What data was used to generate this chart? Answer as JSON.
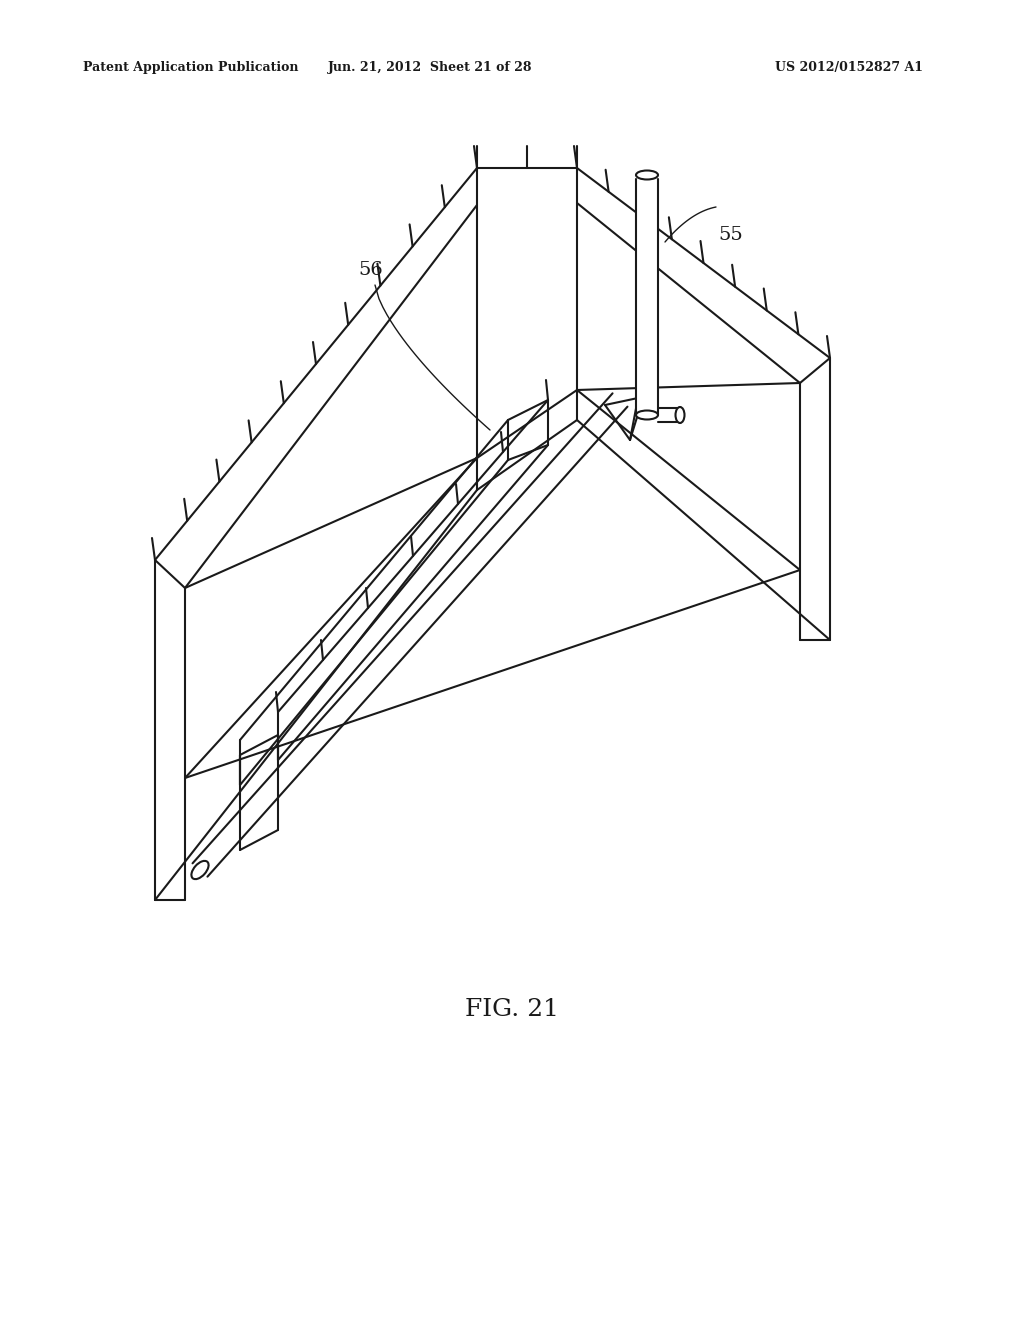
{
  "header_left": "Patent Application Publication",
  "header_center": "Jun. 21, 2012  Sheet 21 of 28",
  "header_right": "US 2012/0152827 A1",
  "figure_label": "FIG. 21",
  "label_55": "55",
  "label_56": "56",
  "bg_color": "#ffffff",
  "line_color": "#1a1a1a",
  "lw": 1.5,
  "tlw": 1.0
}
